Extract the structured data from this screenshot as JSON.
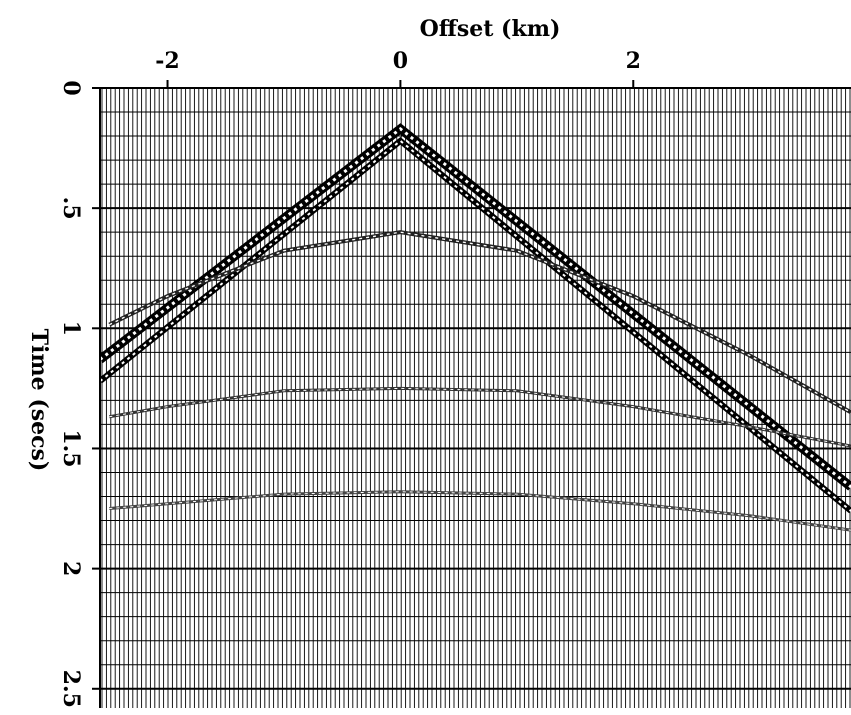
{
  "chart_data": {
    "type": "line",
    "xlabel": "Offset (km)",
    "ylabel": "Time (secs)",
    "xlim": [
      -2.58,
      3.87
    ],
    "ylim": [
      0,
      2.58
    ],
    "xticks": [
      -2,
      0,
      2
    ],
    "yticks": [
      0,
      {
        "value": 0.5,
        "label": ".5"
      },
      1,
      1.5,
      2,
      2.5
    ],
    "y_inverted": true,
    "grid": true,
    "series": [
      {
        "color": "#000000",
        "linewidth": 9,
        "x": [
          -2.58,
          0,
          3.87
        ],
        "values": [
          1.13,
          0.17,
          1.66
        ]
      },
      {
        "color": "#000000",
        "linewidth": 6,
        "x": [
          -2.58,
          0,
          3.87
        ],
        "values": [
          1.22,
          0.22,
          1.76
        ]
      },
      {
        "color": "#222222",
        "linewidth": 4,
        "x": [
          -2.5,
          -2,
          -1,
          0,
          1,
          2,
          3,
          3.87
        ],
        "values": [
          0.985,
          0.866,
          0.677,
          0.6,
          0.677,
          0.866,
          1.113,
          1.35
        ]
      },
      {
        "color": "#333333",
        "linewidth": 3,
        "x": [
          -2.5,
          -2,
          -1,
          0,
          1,
          2,
          3,
          3.87
        ],
        "values": [
          1.368,
          1.326,
          1.26,
          1.25,
          1.26,
          1.326,
          1.41,
          1.49
        ]
      },
      {
        "color": "#444444",
        "linewidth": 3,
        "x": [
          -2.5,
          -2,
          -1,
          0,
          1,
          2,
          3,
          3.87
        ],
        "values": [
          1.75,
          1.73,
          1.69,
          1.68,
          1.69,
          1.73,
          1.78,
          1.84
        ]
      }
    ]
  }
}
